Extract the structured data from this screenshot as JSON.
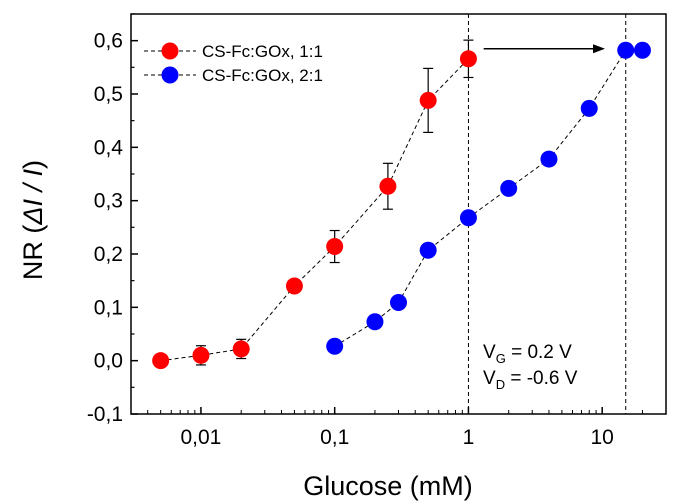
{
  "chart_data": {
    "type": "scatter",
    "xlabel": "Glucose (mM)",
    "ylabel_main": "NR (",
    "ylabel_italic": "ΔI / I",
    "ylabel_end": ")",
    "xscale": "log",
    "xlim": [
      0.003,
      30
    ],
    "ylim": [
      -0.1,
      0.65
    ],
    "x_ticks": [
      0.01,
      0.1,
      1,
      10
    ],
    "x_tick_labels": [
      "0,01",
      "0,1",
      "1",
      "10"
    ],
    "y_ticks": [
      -0.1,
      0.0,
      0.1,
      0.2,
      0.3,
      0.4,
      0.5,
      0.6
    ],
    "y_tick_labels": [
      "-0,1",
      "0,0",
      "0,1",
      "0,2",
      "0,3",
      "0,4",
      "0,5",
      "0,6"
    ],
    "grid": false,
    "legend_position": "top-left",
    "series": [
      {
        "name": "CS-Fc:GOx, 1:1",
        "color": "#ff0000",
        "x": [
          0.005,
          0.01,
          0.02,
          0.05,
          0.1,
          0.25,
          0.5,
          1
        ],
        "y": [
          0.0,
          0.01,
          0.022,
          0.14,
          0.214,
          0.327,
          0.488,
          0.566
        ],
        "yerr": [
          0.008,
          0.018,
          0.018,
          0.012,
          0.03,
          0.043,
          0.06,
          0.035
        ]
      },
      {
        "name": "CS-Fc:GOx, 2:1",
        "color": "#0000ff",
        "x": [
          0.1,
          0.2,
          0.3,
          0.5,
          1,
          2,
          4,
          8,
          15,
          20
        ],
        "y": [
          0.027,
          0.073,
          0.109,
          0.207,
          0.268,
          0.323,
          0.378,
          0.473,
          0.582,
          0.582
        ]
      }
    ],
    "vlines": [
      1,
      15
    ],
    "arrow": {
      "from_x": 1.3,
      "to_x": 10.5,
      "y": 0.566
    },
    "annotations": {
      "vg_main": "V",
      "vg_sub": "G",
      "vg_value": " = 0.2 V",
      "vd_main": "V",
      "vd_sub": "D",
      "vd_value": " = -0.6 V"
    }
  }
}
